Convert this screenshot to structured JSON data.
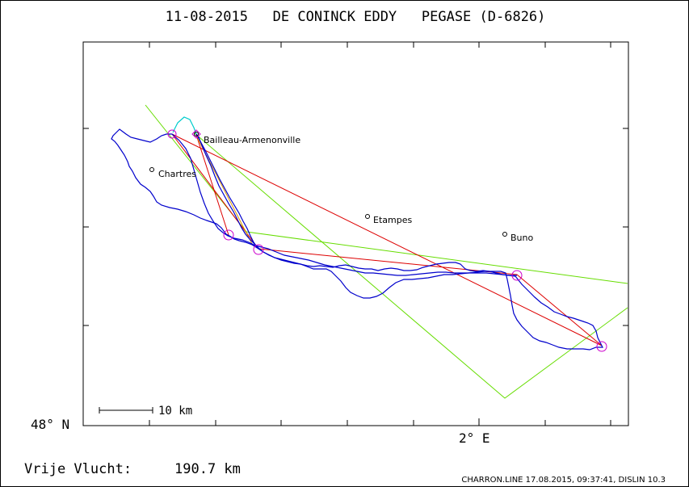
{
  "header": {
    "title": "11-08-2015   DE CONINCK EDDY   PEGASE (D-6826)"
  },
  "places": [
    {
      "name": "Bailleau-Armenonville"
    },
    {
      "name": "Chartres"
    },
    {
      "name": "Etampes"
    },
    {
      "name": "Buno"
    }
  ],
  "scale": {
    "label": "10 km"
  },
  "axes": {
    "lat_label": "48° N",
    "lon_label": "2° E"
  },
  "footer": {
    "distance_label": "Vrije Vlucht:",
    "distance_value": "190.7 km",
    "credit": "CHARRON.LINE 17.08.2015, 09:37:41, DISLIN 10.3"
  },
  "colors": {
    "track": "#0000cc",
    "track_start": "#00cccc",
    "task_lines": "#dd0000",
    "sector_lines": "#66dd00",
    "turnpoints": "#cc00cc",
    "frame": "#000000"
  }
}
